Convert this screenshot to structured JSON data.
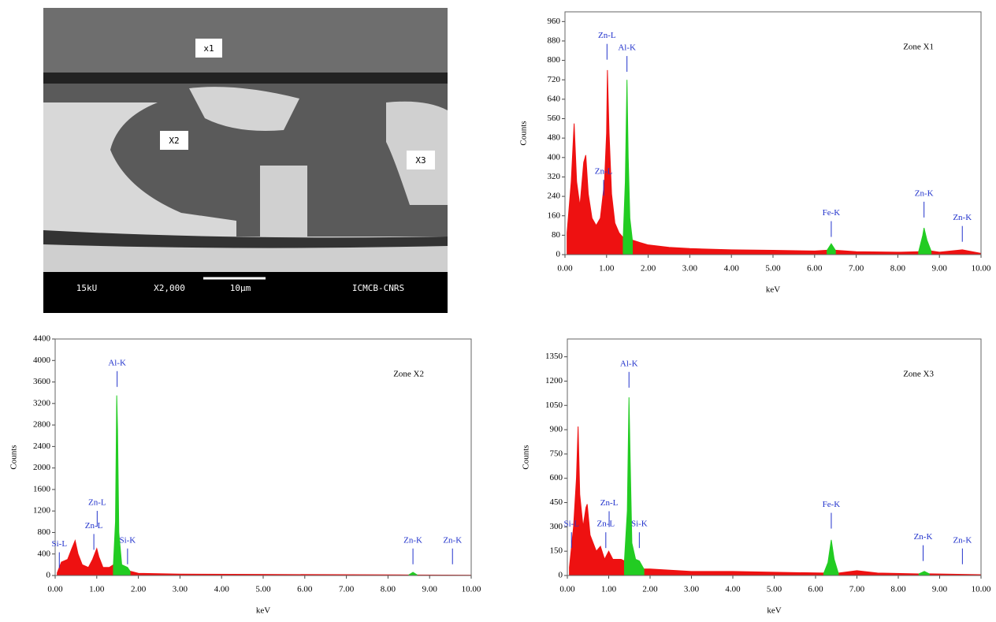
{
  "image": {
    "labels": [
      "x1",
      "X2",
      "X3"
    ],
    "scale_bar": {
      "voltage": "15kU",
      "magnification": "X2,000",
      "length": "10μm",
      "lab": "ICMCB-CNRS"
    }
  },
  "chart_data": [
    {
      "type": "area",
      "title": "Zone X1",
      "xlabel": "keV",
      "ylabel": "Counts",
      "xlim": [
        0,
        10
      ],
      "ylim": [
        0,
        1000
      ],
      "xticks": [
        {
          "value": 0,
          "label": "0.00"
        },
        {
          "value": 1,
          "label": "1.00"
        },
        {
          "value": 2,
          "label": "2.00"
        },
        {
          "value": 3,
          "label": "3.00"
        },
        {
          "value": 4,
          "label": "4.00"
        },
        {
          "value": 5,
          "label": "5.00"
        },
        {
          "value": 6,
          "label": "6.00"
        },
        {
          "value": 7,
          "label": "7.00"
        },
        {
          "value": 8,
          "label": "8.00"
        },
        {
          "value": 9,
          "label": "9.00"
        },
        {
          "value": 10,
          "label": "10.00"
        }
      ],
      "yticks": [
        0,
        80,
        160,
        240,
        320,
        400,
        480,
        560,
        640,
        720,
        800,
        880,
        960
      ],
      "x": [
        0.05,
        0.15,
        0.22,
        0.28,
        0.36,
        0.45,
        0.5,
        0.56,
        0.65,
        0.75,
        0.85,
        0.95,
        1.0,
        1.02,
        1.06,
        1.12,
        1.2,
        1.3,
        1.4,
        1.45,
        1.49,
        1.52,
        1.56,
        1.62,
        1.8,
        2.0,
        2.5,
        3.0,
        4.0,
        5.0,
        6.0,
        6.3,
        6.4,
        6.5,
        7.0,
        8.0,
        8.5,
        8.6,
        8.63,
        8.7,
        8.8,
        9.0,
        9.55,
        10.0
      ],
      "series": [
        {
          "color": "#ee1111",
          "values": [
            90,
            300,
            540,
            300,
            200,
            380,
            410,
            250,
            150,
            120,
            150,
            300,
            500,
            760,
            500,
            250,
            130,
            90,
            70,
            null,
            null,
            null,
            null,
            60,
            50,
            40,
            30,
            25,
            20,
            18,
            15,
            18,
            null,
            18,
            12,
            10,
            12,
            null,
            null,
            null,
            15,
            10,
            20,
            5
          ]
        },
        {
          "color": "#22cc22",
          "values": [
            null,
            null,
            null,
            null,
            null,
            null,
            null,
            null,
            null,
            null,
            null,
            null,
            null,
            null,
            null,
            null,
            null,
            null,
            70,
            300,
            720,
            400,
            150,
            60,
            null,
            null,
            null,
            null,
            null,
            null,
            null,
            18,
            45,
            18,
            null,
            null,
            12,
            80,
            110,
            60,
            15,
            null,
            null,
            null
          ]
        }
      ],
      "annotations": [
        {
          "text": "Zn-L",
          "x": 1.01,
          "y": 790
        },
        {
          "text": "Al-K",
          "x": 1.49,
          "y": 740
        },
        {
          "text": "Zn-L",
          "x": 0.93,
          "y": 230
        },
        {
          "text": "Fe-K",
          "x": 6.4,
          "y": 60
        },
        {
          "text": "Zn-K",
          "x": 8.63,
          "y": 140
        },
        {
          "text": "Zn-K",
          "x": 9.55,
          "y": 40
        }
      ]
    },
    {
      "type": "area",
      "title": "Zone X2",
      "xlabel": "keV",
      "ylabel": "Counts",
      "xlim": [
        0,
        10
      ],
      "ylim": [
        0,
        4400
      ],
      "xticks": [
        {
          "value": 0,
          "label": "0.00"
        },
        {
          "value": 1,
          "label": "1.00"
        },
        {
          "value": 2,
          "label": "2.00"
        },
        {
          "value": 3,
          "label": "3.00"
        },
        {
          "value": 4,
          "label": "4.00"
        },
        {
          "value": 5,
          "label": "5.00"
        },
        {
          "value": 6,
          "label": "6.00"
        },
        {
          "value": 7,
          "label": "7.00"
        },
        {
          "value": 8,
          "label": "8.00"
        },
        {
          "value": 9,
          "label": "9.00"
        },
        {
          "value": 10,
          "label": "10.00"
        }
      ],
      "yticks": [
        0,
        400,
        800,
        1200,
        1600,
        2000,
        2400,
        2800,
        3200,
        3600,
        4000,
        4400
      ],
      "x": [
        0.05,
        0.15,
        0.3,
        0.4,
        0.48,
        0.55,
        0.65,
        0.8,
        0.9,
        1.0,
        1.05,
        1.15,
        1.3,
        1.4,
        1.45,
        1.48,
        1.5,
        1.53,
        1.6,
        1.74,
        1.8,
        2.0,
        3.0,
        5.0,
        8.5,
        8.6,
        8.7,
        10.0
      ],
      "series": [
        {
          "color": "#ee1111",
          "values": [
            50,
            250,
            300,
            500,
            650,
            400,
            200,
            150,
            300,
            500,
            350,
            150,
            150,
            200,
            null,
            null,
            null,
            null,
            null,
            null,
            80,
            40,
            25,
            20,
            10,
            null,
            10,
            5
          ]
        },
        {
          "color": "#22cc22",
          "values": [
            null,
            null,
            null,
            null,
            null,
            null,
            null,
            null,
            null,
            null,
            null,
            null,
            null,
            200,
            1000,
            3350,
            2700,
            800,
            200,
            150,
            80,
            null,
            null,
            null,
            10,
            60,
            10,
            null
          ]
        }
      ],
      "annotations": [
        {
          "text": "Al-K",
          "x": 1.49,
          "y": 3450
        },
        {
          "text": "Si-L",
          "x": 0.1,
          "y": 80
        },
        {
          "text": "Zn-L",
          "x": 0.93,
          "y": 420
        },
        {
          "text": "Zn-L",
          "x": 1.01,
          "y": 850
        },
        {
          "text": "Si-K",
          "x": 1.74,
          "y": 150
        },
        {
          "text": "Zn-K",
          "x": 8.6,
          "y": 150
        },
        {
          "text": "Zn-K",
          "x": 9.55,
          "y": 150
        }
      ]
    },
    {
      "type": "area",
      "title": "Zone X3",
      "xlabel": "keV",
      "ylabel": "Counts",
      "xlim": [
        0,
        10
      ],
      "ylim": [
        0,
        1460
      ],
      "xticks": [
        {
          "value": 0,
          "label": "0.00"
        },
        {
          "value": 1,
          "label": "1.00"
        },
        {
          "value": 2,
          "label": "2.00"
        },
        {
          "value": 3,
          "label": "3.00"
        },
        {
          "value": 4,
          "label": "4.00"
        },
        {
          "value": 5,
          "label": "5.00"
        },
        {
          "value": 6,
          "label": "6.00"
        },
        {
          "value": 7,
          "label": "7.00"
        },
        {
          "value": 8,
          "label": "8.00"
        },
        {
          "value": 9,
          "label": "9.00"
        },
        {
          "value": 10,
          "label": "10.00"
        }
      ],
      "yticks": [
        0,
        150,
        300,
        450,
        600,
        750,
        900,
        1050,
        1200,
        1350
      ],
      "x": [
        0.05,
        0.15,
        0.22,
        0.26,
        0.3,
        0.38,
        0.45,
        0.48,
        0.55,
        0.7,
        0.8,
        0.9,
        1.0,
        1.1,
        1.3,
        1.38,
        1.45,
        1.49,
        1.52,
        1.56,
        1.65,
        1.74,
        1.85,
        2.0,
        3.0,
        4.0,
        5.0,
        6.2,
        6.3,
        6.38,
        6.45,
        6.55,
        7.0,
        7.5,
        8.5,
        8.63,
        8.75,
        10.0
      ],
      "series": [
        {
          "color": "#ee1111",
          "values": [
            50,
            300,
            600,
            920,
            500,
            300,
            420,
            440,
            250,
            150,
            180,
            100,
            150,
            100,
            100,
            90,
            null,
            null,
            null,
            null,
            null,
            null,
            40,
            40,
            25,
            25,
            20,
            15,
            null,
            null,
            null,
            15,
            30,
            15,
            10,
            null,
            10,
            5
          ]
        },
        {
          "color": "#22cc22",
          "values": [
            null,
            null,
            null,
            null,
            null,
            null,
            null,
            null,
            null,
            null,
            null,
            null,
            null,
            null,
            null,
            90,
            400,
            1100,
            700,
            200,
            100,
            90,
            40,
            null,
            null,
            null,
            null,
            15,
            80,
            220,
            100,
            15,
            null,
            null,
            10,
            25,
            10,
            null
          ]
        }
      ],
      "annotations": [
        {
          "text": "Al-K",
          "x": 1.49,
          "y": 1140
        },
        {
          "text": "Si-L",
          "x": 0.1,
          "y": 150
        },
        {
          "text": "Zn-L",
          "x": 0.93,
          "y": 150
        },
        {
          "text": "Zn-L",
          "x": 1.01,
          "y": 280
        },
        {
          "text": "Si-K",
          "x": 1.74,
          "y": 150
        },
        {
          "text": "Fe-K",
          "x": 6.38,
          "y": 270
        },
        {
          "text": "Zn-K",
          "x": 8.6,
          "y": 70
        },
        {
          "text": "Zn-K",
          "x": 9.55,
          "y": 50
        }
      ]
    }
  ]
}
